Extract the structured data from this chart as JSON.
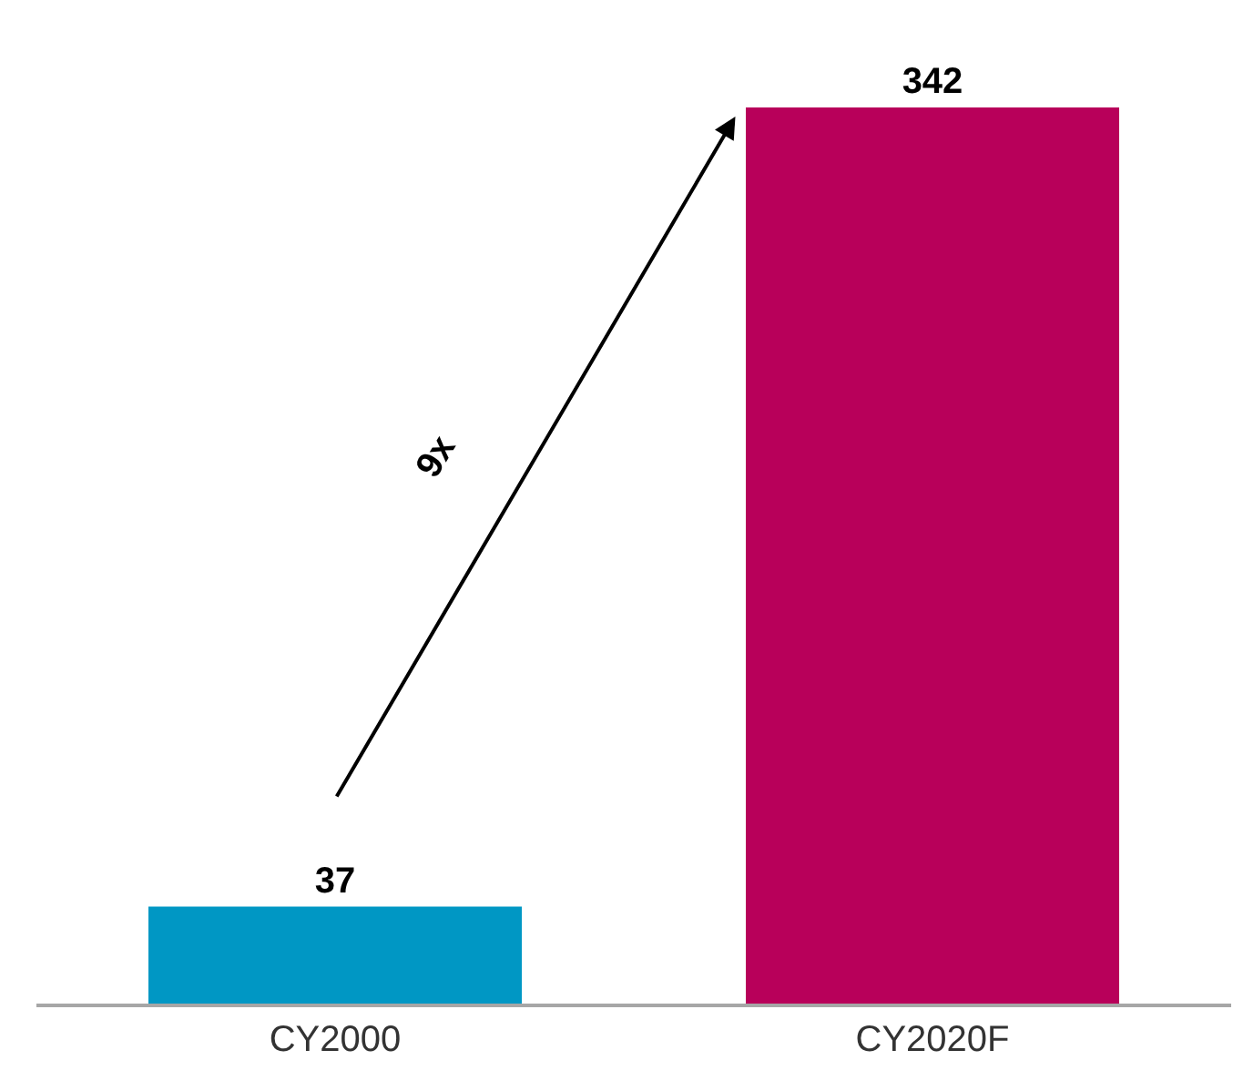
{
  "chart_data": {
    "type": "bar",
    "categories": [
      "CY2000",
      "CY2020F"
    ],
    "values": [
      37,
      342
    ],
    "colors": [
      "#0097c4",
      "#b8005a"
    ],
    "data_labels": true,
    "annotations": [
      "9x"
    ],
    "legend": false
  }
}
